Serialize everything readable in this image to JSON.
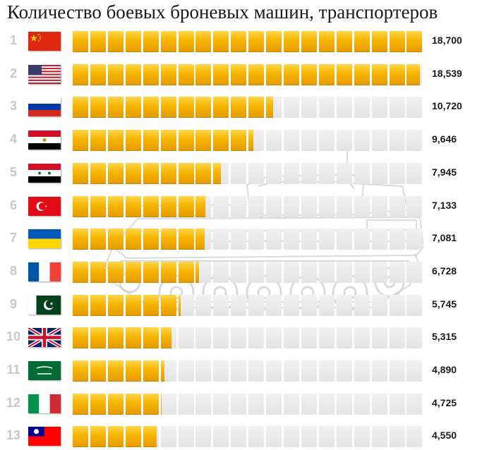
{
  "title": "Количество боевых броневых машин, транспортеров",
  "colors": {
    "bar": "#f6b400",
    "empty": "#e8e8e8",
    "rank": "#c8c8c8"
  },
  "chart_data": {
    "type": "bar",
    "orientation": "horizontal",
    "title": "Количество боевых броневых машин, транспортеров",
    "xlim": [
      0,
      18700
    ],
    "grid": false,
    "legend": "none",
    "categories": [
      "1",
      "2",
      "3",
      "4",
      "5",
      "6",
      "7",
      "8",
      "9",
      "10",
      "11",
      "12",
      "13"
    ],
    "values": [
      18700,
      18539,
      10720,
      9646,
      7945,
      7133,
      7081,
      6728,
      5745,
      5315,
      4890,
      4725,
      4550
    ],
    "value_labels": [
      "18,700",
      "18,539",
      "10,720",
      "9,646",
      "7,945",
      "7,133",
      "7,081",
      "6,728",
      "5,745",
      "5,315",
      "4,890",
      "4,725",
      "4,550"
    ],
    "flags": [
      "china-flag",
      "usa-flag",
      "russia-flag",
      "egypt-flag",
      "syria-flag",
      "turkey-flag",
      "ukraine-flag",
      "france-flag",
      "pakistan-flag",
      "uk-flag",
      "saudi-arabia-flag",
      "italy-flag",
      "taiwan-flag"
    ]
  }
}
